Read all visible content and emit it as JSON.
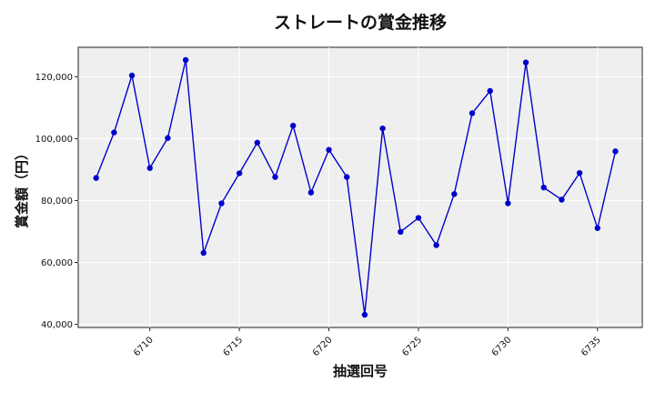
{
  "chart_data": {
    "type": "line",
    "title": "ストレートの賞金推移",
    "xlabel": "抽選回号",
    "ylabel": "賞金額（円）",
    "x": [
      6707,
      6708,
      6709,
      6710,
      6711,
      6712,
      6713,
      6714,
      6715,
      6716,
      6717,
      6718,
      6719,
      6720,
      6721,
      6722,
      6723,
      6724,
      6725,
      6726,
      6727,
      6728,
      6729,
      6730,
      6731,
      6732,
      6733,
      6734,
      6735,
      6736
    ],
    "series": [
      {
        "values": [
          87300,
          102000,
          120400,
          90500,
          100200,
          125400,
          63100,
          79100,
          88800,
          98700,
          87600,
          104200,
          82600,
          96400,
          87600,
          43100,
          103300,
          69900,
          74400,
          65600,
          82100,
          108200,
          115400,
          79100,
          124600,
          84200,
          80300,
          88900,
          71100,
          95900
        ]
      }
    ],
    "xticks": [
      6710,
      6715,
      6720,
      6725,
      6730,
      6735
    ],
    "yticks": [
      40000,
      60000,
      80000,
      100000,
      120000
    ],
    "ytick_labels": [
      "40,000",
      "60,000",
      "80,000",
      "100,000",
      "120,000"
    ],
    "xlim": [
      6706,
      6737.5
    ],
    "ylim": [
      39000,
      129500
    ],
    "grid": true,
    "line_color": "#0000cc",
    "marker_color": "#0000cc",
    "plot_background": "#efefef"
  }
}
